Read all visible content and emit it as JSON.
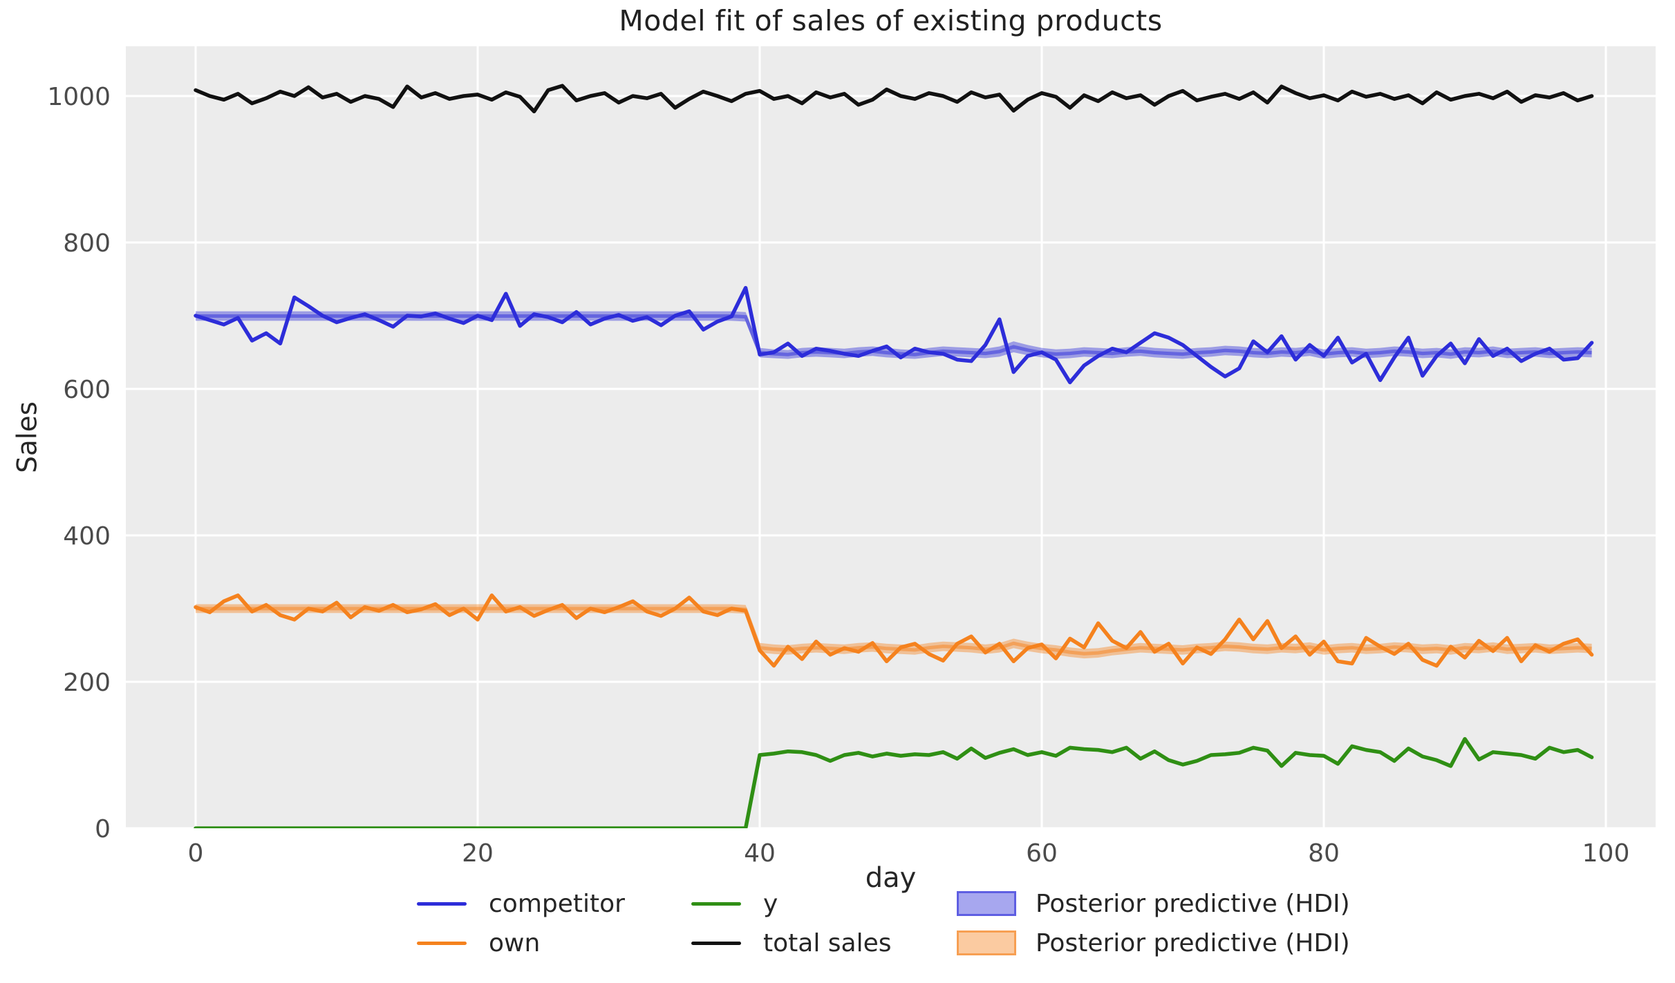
{
  "title": "Model fit of sales of existing products",
  "colors": {
    "figure_bg": "#ffffff",
    "plot_bg": "#ececec",
    "grid": "#ffffff",
    "tick_label": "#4b4b4b",
    "competitor_blue": "#2d2dd9",
    "own_orange": "#f5821e",
    "y_green": "#2f8f14",
    "total_black": "#111111"
  },
  "legend": {
    "items": [
      {
        "label": "competitor",
        "swatch": "line",
        "color": "#2d2dd9"
      },
      {
        "label": "own",
        "swatch": "line",
        "color": "#f5821e"
      },
      {
        "label": "y",
        "swatch": "line",
        "color": "#2f8f14"
      },
      {
        "label": "total sales",
        "swatch": "line",
        "color": "#111111"
      },
      {
        "label": "Posterior predictive (HDI)",
        "swatch": "patch",
        "color": "#2d2dd9"
      },
      {
        "label": "Posterior predictive (HDI)",
        "swatch": "patch",
        "color": "#f5821e"
      }
    ]
  },
  "chart_data": {
    "type": "line",
    "title": "Model fit of sales of existing products",
    "xlabel": "day",
    "ylabel": "Sales",
    "xticks": [
      0,
      20,
      40,
      60,
      80,
      100
    ],
    "yticks": [
      0,
      200,
      400,
      600,
      800,
      1000
    ],
    "xlim": [
      -5,
      103.7
    ],
    "ylim": [
      0,
      1068
    ],
    "x_range": [
      0,
      99
    ],
    "x_step": 1,
    "grid": true,
    "legend_position": "below",
    "series": [
      {
        "name": "competitor",
        "color": "#2d2dd9",
        "values": [
          700,
          694,
          688,
          697,
          666,
          676,
          662,
          725,
          713,
          700,
          691,
          697,
          702,
          694,
          685,
          700,
          699,
          703,
          696,
          690,
          700,
          694,
          730,
          686,
          702,
          698,
          691,
          705,
          688,
          696,
          701,
          693,
          698,
          687,
          700,
          706,
          681,
          692,
          699,
          738,
          647,
          650,
          662,
          645,
          655,
          652,
          648,
          645,
          652,
          658,
          643,
          655,
          650,
          648,
          640,
          638,
          660,
          695,
          623,
          645,
          650,
          640,
          609,
          632,
          645,
          655,
          650,
          663,
          676,
          670,
          660,
          645,
          630,
          617,
          628,
          665,
          650,
          672,
          640,
          660,
          645,
          670,
          636,
          648,
          612,
          643,
          670,
          618,
          645,
          662,
          635,
          668,
          645,
          655,
          638,
          648,
          655,
          640,
          642,
          663
        ]
      },
      {
        "name": "own",
        "color": "#f5821e",
        "values": [
          302,
          295,
          310,
          318,
          296,
          305,
          291,
          285,
          300,
          296,
          308,
          288,
          302,
          297,
          305,
          295,
          299,
          306,
          291,
          300,
          285,
          318,
          296,
          302,
          290,
          298,
          305,
          287,
          300,
          295,
          302,
          310,
          296,
          290,
          300,
          315,
          296,
          291,
          300,
          297,
          243,
          222,
          248,
          231,
          255,
          237,
          246,
          241,
          253,
          228,
          247,
          252,
          238,
          229,
          252,
          262,
          240,
          252,
          228,
          246,
          251,
          232,
          259,
          247,
          280,
          256,
          246,
          268,
          241,
          252,
          225,
          247,
          238,
          258,
          285,
          258,
          283,
          246,
          262,
          237,
          255,
          228,
          225,
          260,
          248,
          238,
          252,
          230,
          222,
          248,
          233,
          256,
          242,
          260,
          228,
          250,
          241,
          252,
          258,
          237
        ]
      },
      {
        "name": "y",
        "color": "#2f8f14",
        "values": [
          0,
          0,
          0,
          0,
          0,
          0,
          0,
          0,
          0,
          0,
          0,
          0,
          0,
          0,
          0,
          0,
          0,
          0,
          0,
          0,
          0,
          0,
          0,
          0,
          0,
          0,
          0,
          0,
          0,
          0,
          0,
          0,
          0,
          0,
          0,
          0,
          0,
          0,
          0,
          0,
          100,
          102,
          105,
          104,
          100,
          92,
          100,
          103,
          98,
          102,
          99,
          101,
          100,
          104,
          95,
          109,
          96,
          103,
          108,
          100,
          104,
          99,
          110,
          108,
          107,
          104,
          110,
          95,
          105,
          93,
          87,
          92,
          100,
          101,
          103,
          110,
          106,
          85,
          103,
          100,
          99,
          88,
          112,
          107,
          104,
          92,
          109,
          98,
          93,
          85,
          122,
          94,
          104,
          102,
          100,
          95,
          110,
          104,
          107,
          97
        ]
      },
      {
        "name": "total sales",
        "color": "#111111",
        "values": [
          1008,
          1000,
          995,
          1003,
          990,
          997,
          1006,
          1000,
          1012,
          998,
          1003,
          992,
          1000,
          996,
          985,
          1013,
          998,
          1004,
          996,
          1000,
          1002,
          995,
          1005,
          999,
          979,
          1008,
          1014,
          994,
          1000,
          1004,
          991,
          1000,
          997,
          1003,
          984,
          996,
          1006,
          1000,
          993,
          1003,
          1007,
          996,
          1000,
          990,
          1005,
          998,
          1003,
          988,
          995,
          1009,
          1000,
          996,
          1004,
          1000,
          992,
          1005,
          998,
          1002,
          980,
          995,
          1004,
          999,
          984,
          1001,
          993,
          1005,
          997,
          1001,
          988,
          1000,
          1007,
          994,
          999,
          1003,
          996,
          1005,
          991,
          1013,
          1004,
          997,
          1001,
          994,
          1006,
          999,
          1003,
          996,
          1001,
          990,
          1005,
          995,
          1000,
          1003,
          997,
          1006,
          992,
          1001,
          998,
          1004,
          994,
          1000
        ]
      }
    ],
    "bands": [
      {
        "name": "Posterior predictive (HDI)",
        "color": "#2d2dd9",
        "lower": [
          693,
          693,
          693,
          693,
          693,
          693,
          693,
          693,
          693,
          693,
          693,
          693,
          693,
          693,
          693,
          693,
          693,
          693,
          693,
          693,
          693,
          693,
          693,
          693,
          693,
          693,
          693,
          693,
          693,
          693,
          693,
          693,
          693,
          693,
          693,
          693,
          693,
          693,
          693,
          692,
          643,
          642,
          641,
          643,
          644,
          643,
          642,
          644,
          645,
          643,
          642,
          641,
          643,
          645,
          644,
          643,
          642,
          644,
          650,
          646,
          643,
          641,
          642,
          644,
          643,
          642,
          644,
          645,
          643,
          642,
          641,
          643,
          644,
          646,
          645,
          643,
          642,
          644,
          643,
          645,
          641,
          643,
          644,
          642,
          643,
          645,
          644,
          642,
          643,
          641,
          644,
          643,
          645,
          642,
          643,
          644,
          642,
          643,
          644,
          643
        ],
        "upper": [
          706,
          706,
          706,
          706,
          706,
          706,
          706,
          706,
          706,
          706,
          706,
          706,
          706,
          706,
          706,
          706,
          706,
          706,
          706,
          706,
          706,
          706,
          706,
          706,
          706,
          706,
          706,
          706,
          706,
          706,
          706,
          706,
          706,
          706,
          706,
          706,
          706,
          706,
          706,
          705,
          656,
          654,
          653,
          656,
          657,
          656,
          655,
          657,
          658,
          656,
          654,
          653,
          656,
          658,
          657,
          656,
          655,
          658,
          665,
          660,
          656,
          654,
          655,
          657,
          656,
          655,
          657,
          658,
          656,
          655,
          654,
          656,
          657,
          659,
          658,
          656,
          655,
          657,
          656,
          658,
          654,
          656,
          657,
          655,
          656,
          658,
          657,
          655,
          656,
          654,
          657,
          656,
          658,
          655,
          656,
          657,
          655,
          656,
          657,
          656
        ]
      },
      {
        "name": "Posterior predictive (HDI)",
        "color": "#f5821e",
        "lower": [
          294,
          294,
          294,
          294,
          294,
          294,
          294,
          294,
          294,
          294,
          294,
          294,
          294,
          294,
          294,
          294,
          294,
          294,
          294,
          294,
          294,
          294,
          294,
          294,
          294,
          294,
          294,
          294,
          294,
          294,
          294,
          294,
          294,
          294,
          294,
          294,
          294,
          294,
          294,
          293,
          240,
          238,
          237,
          239,
          240,
          239,
          238,
          240,
          241,
          239,
          238,
          237,
          240,
          242,
          241,
          240,
          238,
          240,
          246,
          242,
          239,
          237,
          234,
          232,
          233,
          236,
          238,
          240,
          239,
          238,
          237,
          239,
          240,
          242,
          241,
          239,
          238,
          240,
          239,
          241,
          237,
          239,
          240,
          238,
          239,
          241,
          240,
          238,
          239,
          237,
          240,
          239,
          241,
          238,
          239,
          240,
          238,
          239,
          240,
          239
        ],
        "upper": [
          306,
          306,
          306,
          306,
          306,
          306,
          306,
          306,
          306,
          306,
          306,
          306,
          306,
          306,
          306,
          306,
          306,
          306,
          306,
          306,
          306,
          306,
          306,
          306,
          306,
          306,
          306,
          306,
          306,
          306,
          306,
          306,
          306,
          306,
          306,
          306,
          306,
          306,
          306,
          305,
          253,
          251,
          250,
          252,
          253,
          252,
          251,
          253,
          254,
          252,
          251,
          250,
          253,
          255,
          254,
          253,
          251,
          253,
          259,
          255,
          252,
          250,
          247,
          245,
          246,
          249,
          251,
          253,
          252,
          251,
          250,
          252,
          253,
          255,
          254,
          252,
          251,
          253,
          252,
          254,
          250,
          252,
          253,
          251,
          252,
          254,
          253,
          251,
          252,
          250,
          253,
          252,
          254,
          251,
          252,
          253,
          251,
          252,
          253,
          252
        ]
      }
    ]
  }
}
